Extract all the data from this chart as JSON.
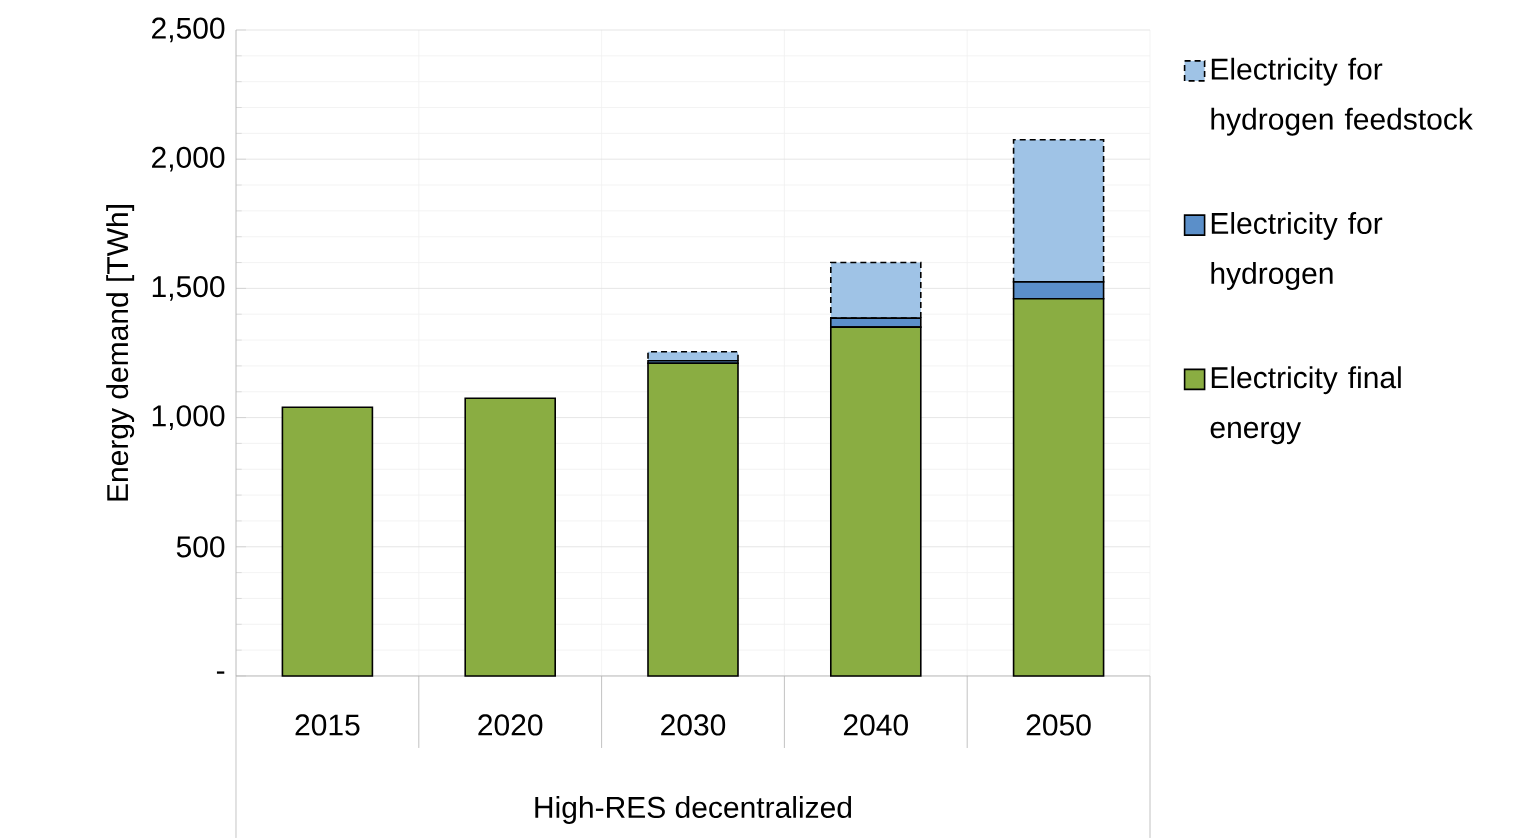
{
  "chart_data": {
    "type": "bar",
    "stacked": true,
    "ylabel": "Energy demand [TWh]",
    "xlabel": "High-RES decentralized",
    "categories": [
      "2015",
      "2020",
      "2030",
      "2040",
      "2050"
    ],
    "series": [
      {
        "name": "Electricity final energy",
        "color": "#8aad42",
        "values": [
          1040,
          1075,
          1210,
          1350,
          1460
        ]
      },
      {
        "name": "Electricity for hydrogen",
        "color": "#5b8fc9",
        "values": [
          0,
          0,
          10,
          35,
          65
        ]
      },
      {
        "name": "Electricity for hydrogen feedstock",
        "color": "#9fc3e6",
        "line_style": "dashed",
        "values": [
          0,
          0,
          35,
          215,
          550
        ]
      }
    ],
    "ylim": [
      0,
      2500
    ],
    "yticks": [
      {
        "value": 0,
        "label": "-"
      },
      {
        "value": 500,
        "label": "500"
      },
      {
        "value": 1000,
        "label": "1,000"
      },
      {
        "value": 1500,
        "label": "1,500"
      },
      {
        "value": 2000,
        "label": "2,000"
      },
      {
        "value": 2500,
        "label": "2,500"
      }
    ],
    "grid": true,
    "legend": "right"
  }
}
